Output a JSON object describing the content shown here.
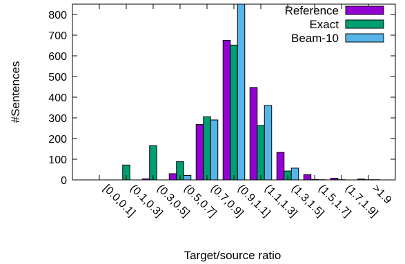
{
  "chart_data": {
    "type": "bar",
    "title": "",
    "xlabel": "Target/source ratio",
    "ylabel": "#Sentences",
    "ylim": [
      0,
      850
    ],
    "yticks": [
      0,
      100,
      200,
      300,
      400,
      500,
      600,
      700,
      800
    ],
    "legend_position": "top-right",
    "grid": false,
    "categories": [
      "[0.0,0.1]",
      "(0.1,0.3]",
      "(0.3,0.5]",
      "(0.5,0.7]",
      "(0.7,0.9]",
      "(0.9,1.1]",
      "(1.1,1.3]",
      "(1.3,1.5]",
      "(1.5,1.7]",
      "(1.7,1.9]",
      ">1.9"
    ],
    "series": [
      {
        "name": "Reference",
        "color": "#9400d3",
        "values": [
          0,
          0,
          5,
          30,
          268,
          675,
          447,
          133,
          25,
          8,
          4
        ]
      },
      {
        "name": "Exact",
        "color": "#009e73",
        "values": [
          0,
          72,
          165,
          88,
          305,
          652,
          263,
          43,
          2,
          1,
          1
        ]
      },
      {
        "name": "Beam-10",
        "color": "#56b4e9",
        "values": [
          0,
          0,
          0,
          22,
          290,
          850,
          360,
          57,
          1,
          0,
          1
        ]
      }
    ]
  }
}
